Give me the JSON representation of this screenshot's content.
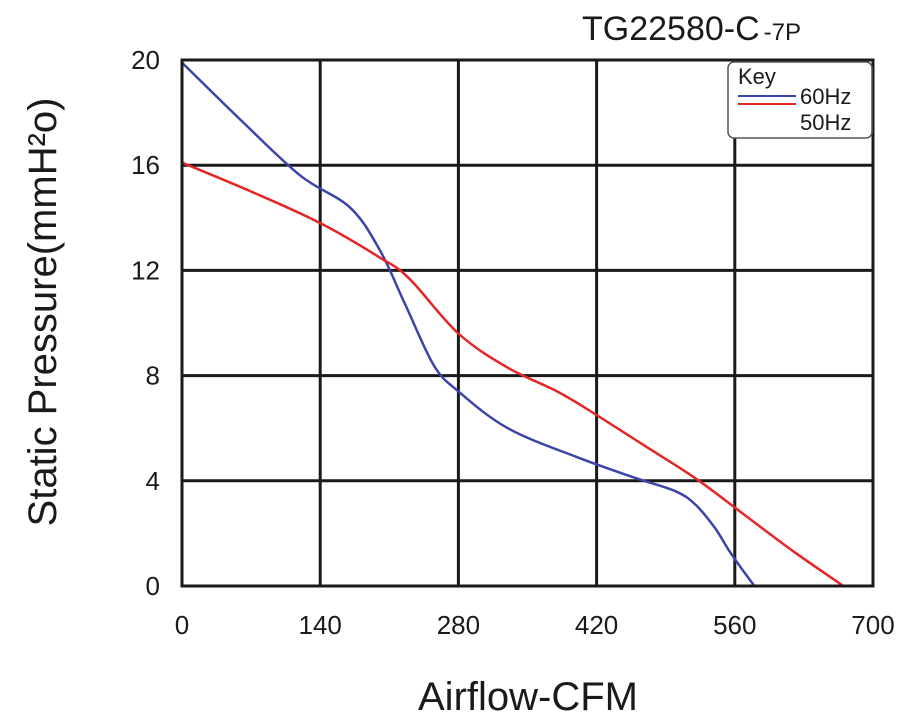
{
  "chart_data": {
    "type": "line",
    "title": "TG22580-C",
    "title_suffix": "-7P",
    "xlabel": "Airflow-CFM",
    "ylabel": "Static Pressure(mmH²o)",
    "xlim": [
      0,
      700
    ],
    "ylim": [
      0,
      20
    ],
    "x_ticks": [
      0,
      140,
      280,
      420,
      560,
      700
    ],
    "x_tick_labels": [
      "0",
      "140",
      "280",
      "420",
      "560",
      "700"
    ],
    "y_ticks": [
      0,
      4,
      8,
      12,
      16,
      20
    ],
    "y_tick_labels": [
      "0",
      "4",
      "8",
      "12",
      "16",
      "20"
    ],
    "grid": true,
    "legend": {
      "title": "Key",
      "placement": "top-right"
    },
    "series": [
      {
        "name": "60Hz",
        "color": "#3d44a8",
        "x": [
          0,
          60,
          120,
          170,
          200,
          225,
          255,
          280,
          330,
          400,
          460,
          500,
          520,
          540,
          555,
          570,
          580
        ],
        "y": [
          19.9,
          17.7,
          15.6,
          14.4,
          12.8,
          10.8,
          8.4,
          7.4,
          6.0,
          4.9,
          4.1,
          3.6,
          3.1,
          2.2,
          1.3,
          0.5,
          0.0
        ]
      },
      {
        "name": "50Hz",
        "color": "#e32626",
        "x": [
          0,
          70,
          140,
          200,
          230,
          280,
          330,
          380,
          420,
          470,
          520,
          570,
          620,
          670
        ],
        "y": [
          16.1,
          15.0,
          13.8,
          12.5,
          11.7,
          9.6,
          8.3,
          7.4,
          6.5,
          5.3,
          4.1,
          2.7,
          1.3,
          0.0
        ]
      }
    ]
  }
}
